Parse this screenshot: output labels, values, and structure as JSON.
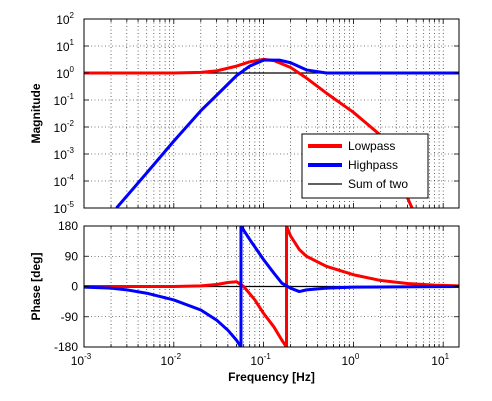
{
  "chart_data": [
    {
      "type": "line",
      "panel": "magnitude",
      "ylabel": "Magnitude",
      "xscale": "log",
      "yscale": "log",
      "xlim": [
        0.001,
        15
      ],
      "ylim": [
        1e-05,
        100
      ],
      "grid": true,
      "legend_placement": "right",
      "ytick_exponents": [
        "2",
        "1",
        "0",
        "-1",
        "-2",
        "-3",
        "-4",
        "-5"
      ],
      "series": [
        {
          "name": "Lowpass",
          "color": "#ff0000",
          "x": [
            0.001,
            0.003,
            0.01,
            0.02,
            0.03,
            0.05,
            0.07,
            0.1,
            0.13,
            0.2,
            0.3,
            0.5,
            1,
            2,
            3,
            4.5
          ],
          "y": [
            1.0,
            1.0,
            1.0,
            1.05,
            1.2,
            1.8,
            2.6,
            3.2,
            2.9,
            1.6,
            0.65,
            0.18,
            0.035,
            0.005,
            0.0002,
            1e-05
          ]
        },
        {
          "name": "Highpass",
          "color": "#0000ff",
          "x": [
            0.0023,
            0.005,
            0.01,
            0.02,
            0.03,
            0.05,
            0.07,
            0.1,
            0.15,
            0.2,
            0.3,
            0.5,
            1,
            3,
            10,
            15
          ],
          "y": [
            1e-05,
            0.0002,
            0.003,
            0.04,
            0.15,
            0.8,
            1.8,
            3.0,
            3.0,
            2.4,
            1.3,
            1.0,
            1.0,
            1.0,
            1.0,
            1.0
          ]
        },
        {
          "name": "Sum of two",
          "color": "#000000",
          "x": [
            0.001,
            15
          ],
          "y": [
            1,
            1
          ]
        }
      ]
    },
    {
      "type": "line",
      "panel": "phase",
      "xlabel": "Frequency [Hz]",
      "ylabel": "Phase [deg]",
      "xscale": "log",
      "xlim": [
        0.001,
        15
      ],
      "ylim": [
        -180,
        180
      ],
      "grid": true,
      "yticks": [
        "180",
        "90",
        "0",
        "-90",
        "-180"
      ],
      "xtick_exponents": [
        "-3",
        "-2",
        "-1",
        "0",
        "1"
      ],
      "series": [
        {
          "name": "Lowpass",
          "color": "#ff0000",
          "segments": [
            {
              "x": [
                0.001,
                0.005,
                0.01,
                0.02,
                0.03,
                0.04,
                0.05,
                0.06,
                0.08,
                0.1,
                0.13,
                0.16,
                0.18
              ],
              "y": [
                0,
                0,
                0,
                2,
                6,
                12,
                14,
                0,
                -40,
                -80,
                -120,
                -160,
                -180
              ]
            },
            {
              "x": [
                0.18,
                0.2,
                0.25,
                0.3,
                0.5,
                1,
                2,
                4,
                8,
                15
              ],
              "y": [
                180,
                150,
                110,
                90,
                60,
                35,
                18,
                9,
                4,
                2
              ]
            }
          ]
        },
        {
          "name": "Highpass",
          "color": "#0000ff",
          "segments": [
            {
              "x": [
                0.001,
                0.002,
                0.003,
                0.005,
                0.01,
                0.02,
                0.03,
                0.04,
                0.05,
                0.056
              ],
              "y": [
                -2,
                -5,
                -10,
                -20,
                -40,
                -70,
                -100,
                -130,
                -160,
                -180
              ]
            },
            {
              "x": [
                0.056,
                0.07,
                0.1,
                0.13,
                0.16,
                0.2,
                0.25,
                0.3,
                0.5,
                1,
                3,
                15
              ],
              "y": [
                180,
                140,
                80,
                40,
                10,
                -5,
                -15,
                -10,
                -5,
                -2,
                -1,
                0
              ]
            }
          ]
        },
        {
          "name": "Sum of two",
          "color": "#000000",
          "segments": [
            {
              "x": [
                0.001,
                15
              ],
              "y": [
                0,
                0
              ]
            }
          ]
        }
      ]
    }
  ]
}
